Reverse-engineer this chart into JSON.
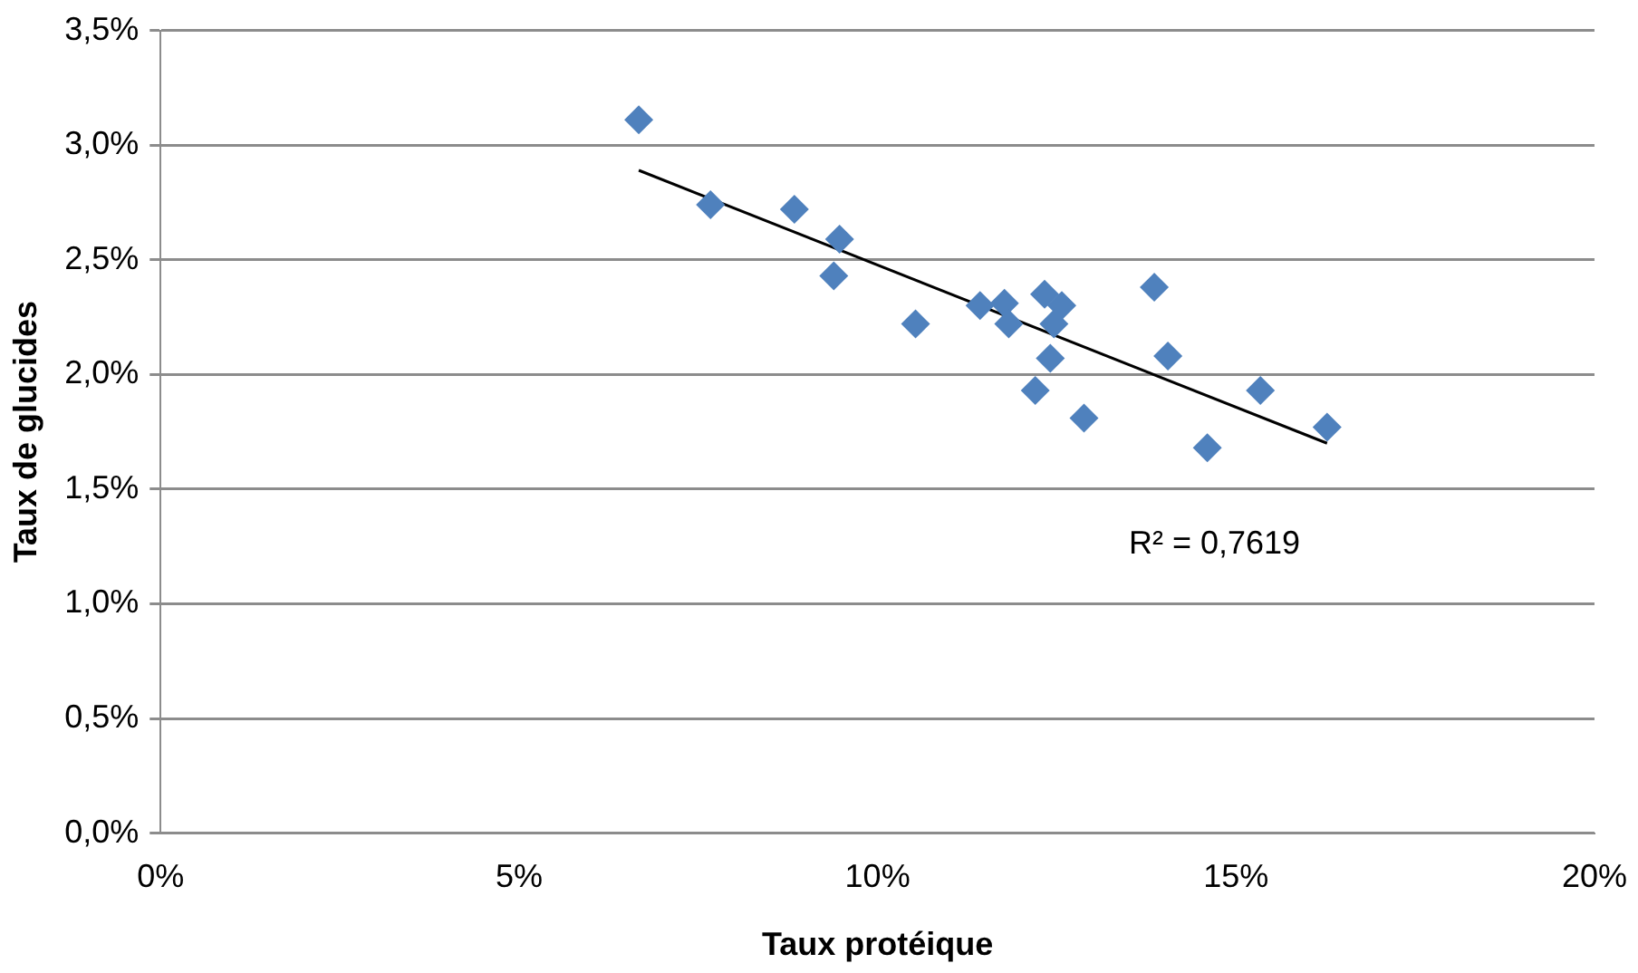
{
  "chart_data": {
    "type": "scatter",
    "xlabel": "Taux protéique",
    "ylabel": "Taux de glucides",
    "marker": "diamond",
    "grid": "y",
    "legend": false,
    "xlim": [
      0,
      20
    ],
    "xticks": [
      {
        "value": 0,
        "label": "0%"
      },
      {
        "value": 5,
        "label": "5%"
      },
      {
        "value": 10,
        "label": "10%"
      },
      {
        "value": 15,
        "label": "15%"
      },
      {
        "value": 20,
        "label": "20%"
      }
    ],
    "ylim": [
      0,
      3.5
    ],
    "yticks": [
      {
        "value": 0,
        "label": "0,0%"
      },
      {
        "value": 0.5,
        "label": "0,5%"
      },
      {
        "value": 1,
        "label": "1,0%"
      },
      {
        "value": 1.5,
        "label": "1,5%"
      },
      {
        "value": 2,
        "label": "2,0%"
      },
      {
        "value": 2.5,
        "label": "2,5%"
      },
      {
        "value": 3,
        "label": "3,0%"
      },
      {
        "value": 3.5,
        "label": "3,5%"
      }
    ],
    "series": [
      {
        "color": "#4f81bd",
        "x": [
          6.67,
          7.67,
          8.84,
          9.47,
          9.39,
          10.53,
          11.43,
          11.77,
          11.83,
          12.33,
          12.57,
          12.46,
          12.41,
          12.2,
          12.88,
          13.86,
          14.05,
          14.6,
          15.34,
          16.27
        ],
        "values": [
          3.11,
          2.74,
          2.72,
          2.59,
          2.43,
          2.22,
          2.3,
          2.31,
          2.22,
          2.35,
          2.3,
          2.22,
          2.07,
          1.93,
          1.81,
          2.38,
          2.08,
          1.68,
          1.93,
          1.77
        ]
      },
      {
        "type": "line",
        "color": "#000000",
        "marker": "none",
        "x": [
          6.67,
          16.27
        ],
        "values": [
          2.89,
          1.7
        ]
      }
    ],
    "annotations": [
      "R² = 0,7619"
    ]
  }
}
